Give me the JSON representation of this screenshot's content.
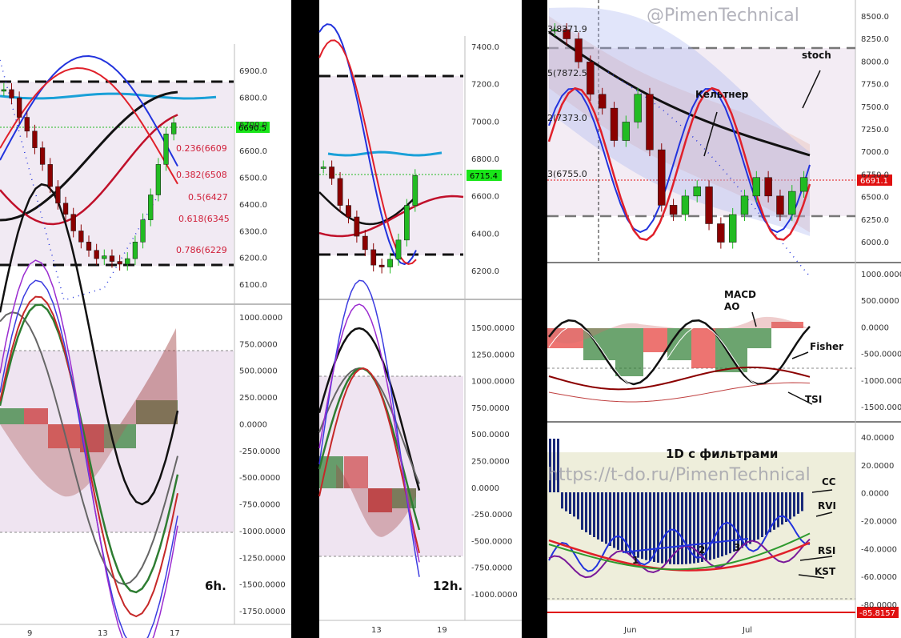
{
  "watermarks": {
    "top": "@PimenTechnical",
    "mid": "https://t-do.ru/PimenTechnical"
  },
  "panel1": {
    "label": "6h.",
    "price_axis": [
      "6900.0",
      "6800.0",
      "6700.0",
      "6600.0",
      "6500.0",
      "6400.0",
      "6300.0",
      "6200.0",
      "6100.0"
    ],
    "price_tag": "6690.5",
    "fib": [
      "0.236(6609",
      "0.382(6508",
      "0.5(6427",
      "0.618(6345",
      "0.786(6229"
    ],
    "osc_axis": [
      "1000.0000",
      "750.0000",
      "500.0000",
      "250.0000",
      "0.0000",
      "-250.0000",
      "-500.0000",
      "-750.0000",
      "-1000.0000",
      "-1250.0000",
      "-1500.0000",
      "-1750.0000"
    ],
    "dates": [
      "9",
      "13",
      "17"
    ]
  },
  "panel2": {
    "label": "12h.",
    "price_axis": [
      "7400.0",
      "7200.0",
      "7000.0",
      "6800.0",
      "6600.0",
      "6400.0",
      "6200.0"
    ],
    "price_tag": "6715.4",
    "osc_axis": [
      "1500.0000",
      "1250.0000",
      "1000.0000",
      "750.0000",
      "500.0000",
      "250.0000",
      "0.0000",
      "-250.0000",
      "-500.0000",
      "-750.0000",
      "-1000.0000"
    ],
    "dates": [
      "13",
      "19"
    ]
  },
  "panel3": {
    "title": "1D  с фильтрами",
    "price_axis": [
      "8500.0",
      "8250.0",
      "8000.0",
      "7750.0",
      "7500.0",
      "7250.0",
      "7000.0",
      "6750.0",
      "6500.0",
      "6250.0",
      "6000.0"
    ],
    "price_tag": "6691.1",
    "fib": [
      "3(8371.9",
      "5(7872.5",
      "2(7373.0",
      "3(6755.0"
    ],
    "ann_price": [
      "Кельтнер",
      "stoch"
    ],
    "macd_axis": [
      "1000.0000",
      "500.0000",
      "0.0000",
      "-500.0000",
      "-1000.0000",
      "-1500.0000"
    ],
    "ann_macd": [
      "MACD",
      "AO",
      "Fisher",
      "TSI"
    ],
    "filt_axis": [
      "40.0000",
      "20.0000",
      "0.0000",
      "-20.0000",
      "-40.0000",
      "-60.0000",
      "-80.0000"
    ],
    "filt_tag": "-85.8157",
    "ann_filt": [
      "CC",
      "RVI",
      "RSI",
      "KST"
    ],
    "wave_labels": [
      "1",
      "2",
      "3"
    ],
    "dates": [
      "Jun",
      "Jul"
    ]
  },
  "colors": {
    "up": "#22bb22",
    "down": "#8b0000",
    "red": "#e0202a",
    "blue": "#2233dd",
    "cyan": "#1aa0d8",
    "tag_green": "#19e619",
    "tag_red": "#e01010"
  },
  "chart_data": [
    {
      "type": "line",
      "title": "6h.",
      "ylim": [
        6050,
        6960
      ],
      "series": [
        {
          "name": "price",
          "values": [
            6810,
            6780,
            6710,
            6660,
            6600,
            6540,
            6460,
            6400,
            6360,
            6300,
            6260,
            6230,
            6200,
            6210,
            6190,
            6180,
            6200,
            6260,
            6340,
            6430,
            6540,
            6650,
            6690
          ]
        }
      ],
      "fib_levels": [
        6609,
        6508,
        6427,
        6345,
        6229
      ],
      "last": 6690.5
    },
    {
      "type": "line",
      "title": "12h.",
      "ylim": [
        6080,
        7440
      ],
      "series": [
        {
          "name": "price",
          "values": [
            6760,
            6700,
            6560,
            6500,
            6400,
            6330,
            6250,
            6240,
            6280,
            6380,
            6560,
            6715
          ]
        }
      ],
      "last": 6715.4
    },
    {
      "type": "line",
      "title": "1D  с фильтрами",
      "ylim": [
        5780,
        8620
      ],
      "series": [
        {
          "name": "price",
          "values": [
            8300,
            8200,
            7950,
            7600,
            7450,
            7100,
            7300,
            7600,
            7000,
            6400,
            6300,
            6500,
            6600,
            6200,
            6000,
            6300,
            6500,
            6700,
            6500,
            6300,
            6550,
            6700
          ]
        }
      ],
      "fib_levels": [
        8371.9,
        7872.5,
        7373.0,
        6755.0
      ],
      "last": 6691.1
    }
  ]
}
